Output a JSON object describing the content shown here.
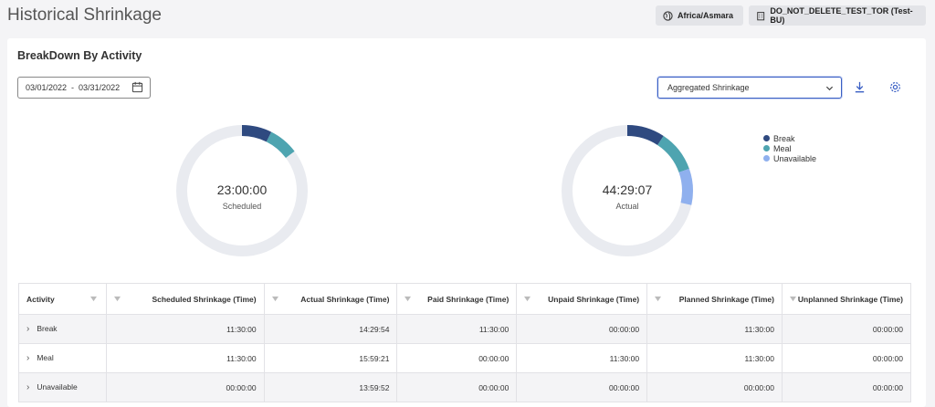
{
  "page": {
    "title": "Historical Shrinkage"
  },
  "header": {
    "timezone": "Africa/Asmara",
    "business_unit": "DO_NOT_DELETE_TEST_TOR (Test-BU)"
  },
  "card": {
    "title": "BreakDown By Activity",
    "date_start": "03/01/2022",
    "date_sep": "-",
    "date_end": "03/31/2022",
    "view_select": "Aggregated Shrinkage"
  },
  "colors": {
    "break": "#2f4a80",
    "meal": "#4ea4b0",
    "unavailable": "#8fb0ee",
    "track": "#e9ebf0"
  },
  "donuts": {
    "scheduled": {
      "value": "23:00:00",
      "label": "Scheduled"
    },
    "actual": {
      "value": "44:29:07",
      "label": "Actual"
    }
  },
  "legend": [
    "Break",
    "Meal",
    "Unavailable"
  ],
  "table": {
    "headers": [
      "Activity",
      "Scheduled Shrinkage (Time)",
      "Actual Shrinkage (Time)",
      "Paid Shrinkage (Time)",
      "Unpaid Shrinkage (Time)",
      "Planned Shrinkage (Time)",
      "Unplanned Shrinkage (Time)"
    ],
    "rows": [
      {
        "activity": "Break",
        "scheduled": "11:30:00",
        "actual": "14:29:54",
        "paid": "11:30:00",
        "unpaid": "00:00:00",
        "planned": "11:30:00",
        "unplanned": "00:00:00"
      },
      {
        "activity": "Meal",
        "scheduled": "11:30:00",
        "actual": "15:59:21",
        "paid": "00:00:00",
        "unpaid": "11:30:00",
        "planned": "11:30:00",
        "unplanned": "00:00:00"
      },
      {
        "activity": "Unavailable",
        "scheduled": "00:00:00",
        "actual": "13:59:52",
        "paid": "00:00:00",
        "unpaid": "00:00:00",
        "planned": "00:00:00",
        "unplanned": "00:00:00"
      }
    ]
  }
}
